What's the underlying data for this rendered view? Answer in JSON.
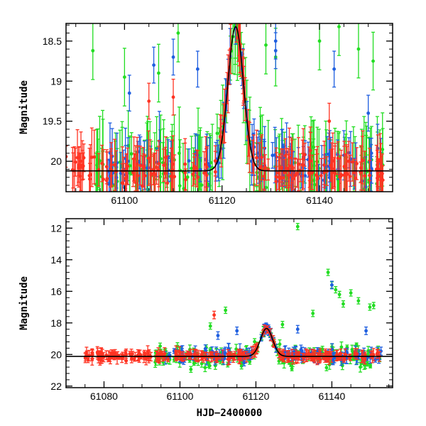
{
  "colors": {
    "green": "#22dd22",
    "blue": "#1f5fe0",
    "red": "#ff3322",
    "model": "#000000"
  },
  "chart_data": [
    {
      "type": "scatter",
      "title": "",
      "xlabel": "",
      "ylabel": "Magnitude",
      "xlim": [
        61088,
        61155
      ],
      "ylim": [
        20.38,
        18.28
      ],
      "y_inverted": true,
      "x_ticks": [
        61100,
        61120,
        61140
      ],
      "x_tick_labels": [
        "61100",
        "61120",
        "61140"
      ],
      "y_ticks": [
        18.5,
        19,
        19.5,
        20
      ],
      "y_tick_labels": [
        "18.5",
        "19",
        "19.5",
        "20"
      ],
      "series": [
        {
          "name": "green",
          "color_key": "green",
          "x_range": [
            61093,
            61153
          ],
          "baseline": 20.1,
          "spread": 0.25,
          "err": 0.45,
          "n": 170,
          "outliers": [
            [
              61093.5,
              18.62
            ],
            [
              61100,
              18.95
            ],
            [
              61107,
              18.9
            ],
            [
              61111,
              18.4
            ],
            [
              61129,
              18.55
            ],
            [
              61131,
              18.7
            ],
            [
              61140,
              18.5
            ],
            [
              61144,
              18.32
            ],
            [
              61148,
              18.6
            ],
            [
              61151,
              18.75
            ]
          ]
        },
        {
          "name": "blue",
          "color_key": "blue",
          "x_range": [
            61096,
            61153
          ],
          "baseline": 20.05,
          "spread": 0.22,
          "err": 0.28,
          "n": 110,
          "outliers": [
            [
              61101,
              19.15
            ],
            [
              61106,
              18.8
            ],
            [
              61110,
              18.7
            ],
            [
              61115,
              18.85
            ],
            [
              61131,
              18.5
            ],
            [
              61131,
              18.62
            ],
            [
              61143,
              18.85
            ],
            [
              61150,
              19.4
            ]
          ]
        },
        {
          "name": "red",
          "color_key": "red",
          "x_range": [
            61088,
            61153
          ],
          "baseline": 20.1,
          "spread": 0.15,
          "err": 0.28,
          "n": 200,
          "outliers": [
            [
              61105,
              19.25
            ],
            [
              61110,
              19.2
            ],
            [
              61142,
              19.5
            ]
          ]
        }
      ],
      "model": {
        "name": "model",
        "baseline": 20.12,
        "peak_x": 61122.8,
        "peak_mag": 18.32,
        "width": 1.6
      }
    },
    {
      "type": "scatter",
      "title": "",
      "xlabel": "HJD−2400000",
      "ylabel": "Magnitude",
      "xlim": [
        61070,
        61156
      ],
      "ylim": [
        22.1,
        11.4
      ],
      "y_inverted": true,
      "x_ticks": [
        61080,
        61100,
        61120,
        61140
      ],
      "x_tick_labels": [
        "61080",
        "61100",
        "61120",
        "61140"
      ],
      "y_ticks": [
        12,
        14,
        16,
        18,
        20,
        22
      ],
      "y_tick_labels": [
        "12",
        "14",
        "16",
        "18",
        "20",
        "22"
      ],
      "series": [
        {
          "name": "green",
          "color_key": "green",
          "x_range": [
            61093,
            61153
          ],
          "baseline": 20.15,
          "spread": 0.6,
          "err": 0.25,
          "n": 180,
          "outliers": [
            [
              61131,
              11.9
            ],
            [
              61139,
              14.8
            ],
            [
              61140,
              15.6
            ],
            [
              61141,
              15.9
            ],
            [
              61142,
              16.2
            ],
            [
              61143,
              16.8
            ],
            [
              61145,
              16.1
            ],
            [
              61147,
              16.6
            ],
            [
              61150,
              17.0
            ],
            [
              61151,
              16.9
            ],
            [
              61112,
              17.2
            ],
            [
              61108,
              18.2
            ],
            [
              61127,
              18.1
            ],
            [
              61135,
              17.4
            ]
          ]
        },
        {
          "name": "blue",
          "color_key": "blue",
          "x_range": [
            61096,
            61153
          ],
          "baseline": 20.05,
          "spread": 0.35,
          "err": 0.3,
          "n": 130,
          "outliers": [
            [
              61140,
              15.6
            ],
            [
              61131,
              18.4
            ],
            [
              61115,
              18.5
            ],
            [
              61110,
              18.8
            ],
            [
              61149,
              18.5
            ]
          ]
        },
        {
          "name": "red",
          "color_key": "red",
          "x_range": [
            61074,
            61153
          ],
          "baseline": 20.1,
          "spread": 0.2,
          "err": 0.3,
          "n": 240,
          "outliers": [
            [
              61109,
              17.5
            ]
          ]
        }
      ],
      "model": {
        "name": "model",
        "baseline": 20.12,
        "peak_x": 61122.8,
        "peak_mag": 18.35,
        "width": 1.6
      }
    }
  ]
}
